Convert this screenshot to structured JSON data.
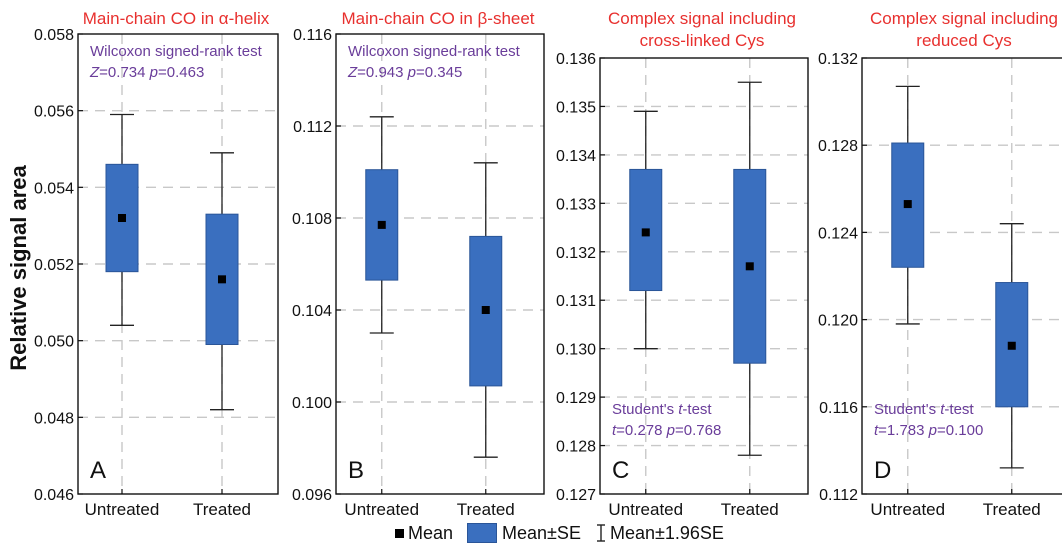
{
  "figure": {
    "ylabel": "Relative signal area",
    "legend": {
      "mean": "Mean",
      "se": "Mean±SE",
      "ci": "Mean±1.96SE"
    },
    "colors": {
      "box": "#3a6fbf",
      "box_edge": "#2a5598",
      "title": "#e8302e",
      "annotation": "#6a3d9a",
      "grid": "#c8c8c8"
    }
  },
  "chart_data": [
    {
      "type": "box",
      "panel": "A",
      "title": [
        "Main-chain CO in α-helix"
      ],
      "categories": [
        "Untreated",
        "Treated"
      ],
      "ylim": [
        0.046,
        0.058
      ],
      "yticks": [
        0.046,
        0.048,
        0.05,
        0.052,
        0.054,
        0.056,
        0.058
      ],
      "tick_decimals": 3,
      "mean": [
        0.0532,
        0.0516
      ],
      "se_low": [
        0.0518,
        0.0499
      ],
      "se_high": [
        0.0546,
        0.0533
      ],
      "ci_low": [
        0.0504,
        0.0482
      ],
      "ci_high": [
        0.0559,
        0.0549
      ],
      "test": {
        "name": "Wilcoxon signed-rank test",
        "stat_label": "Z",
        "stat": "=0.734",
        "p": "=0.463",
        "position": "top"
      }
    },
    {
      "type": "box",
      "panel": "B",
      "title": [
        "Main-chain CO in β-sheet"
      ],
      "categories": [
        "Untreated",
        "Treated"
      ],
      "ylim": [
        0.096,
        0.116
      ],
      "yticks": [
        0.096,
        0.1,
        0.104,
        0.108,
        0.112,
        0.116
      ],
      "tick_decimals": 3,
      "mean": [
        0.1077,
        0.104
      ],
      "se_low": [
        0.1053,
        0.1007
      ],
      "se_high": [
        0.1101,
        0.1072
      ],
      "ci_low": [
        0.103,
        0.0976
      ],
      "ci_high": [
        0.1124,
        0.1104
      ],
      "test": {
        "name": "Wilcoxon signed-rank test",
        "stat_label": "Z",
        "stat": "=0.943",
        "p": "=0.345",
        "position": "top"
      }
    },
    {
      "type": "box",
      "panel": "C",
      "title": [
        "Complex signal including",
        "cross-linked Cys"
      ],
      "categories": [
        "Untreated",
        "Treated"
      ],
      "ylim": [
        0.127,
        0.136
      ],
      "yticks": [
        0.127,
        0.128,
        0.129,
        0.13,
        0.131,
        0.132,
        0.133,
        0.134,
        0.135,
        0.136
      ],
      "tick_decimals": 3,
      "mean": [
        0.1324,
        0.1317
      ],
      "se_low": [
        0.1312,
        0.1297
      ],
      "se_high": [
        0.1337,
        0.1337
      ],
      "ci_low": [
        0.13,
        0.1278
      ],
      "ci_high": [
        0.1349,
        0.1355
      ],
      "test": {
        "name": "Student's t-test",
        "stat_label": "t",
        "stat": "=0.278",
        "p": "=0.768",
        "position": "bottom"
      }
    },
    {
      "type": "box",
      "panel": "D",
      "title": [
        "Complex signal including",
        "reduced Cys"
      ],
      "categories": [
        "Untreated",
        "Treated"
      ],
      "ylim": [
        0.112,
        0.132
      ],
      "yticks": [
        0.112,
        0.116,
        0.12,
        0.124,
        0.128,
        0.132
      ],
      "tick_decimals": 3,
      "mean": [
        0.1253,
        0.1188
      ],
      "se_low": [
        0.1224,
        0.116
      ],
      "se_high": [
        0.1281,
        0.1217
      ],
      "ci_low": [
        0.1198,
        0.1132
      ],
      "ci_high": [
        0.1307,
        0.1244
      ],
      "test": {
        "name": "Student's t-test",
        "stat_label": "t",
        "stat": "=1.783",
        "p": "=0.100",
        "position": "bottom"
      }
    }
  ]
}
